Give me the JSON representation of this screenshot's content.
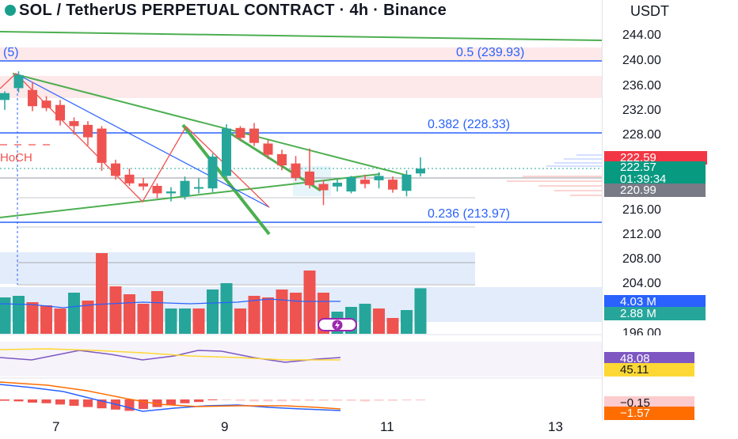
{
  "header": {
    "title": "SOL / TetherUS PERPETUAL CONTRACT · 4h · Binance",
    "currency": "USDT"
  },
  "price_axis": {
    "labels": [
      "244.00",
      "240.00",
      "236.00",
      "232.00",
      "228.00",
      "216.00",
      "212.00",
      "208.00",
      "204.00",
      "196.00"
    ]
  },
  "time_axis": {
    "labels": [
      "7",
      "9",
      "11",
      "13"
    ]
  },
  "fib_levels": [
    {
      "label": "0.5 (239.93)",
      "color": "#2962ff"
    },
    {
      "label": "0.382 (228.33)",
      "color": "#2962ff"
    },
    {
      "label": "0.236 (213.97)",
      "color": "#2962ff"
    }
  ],
  "annotations": {
    "ma_period": "(5)",
    "choch": "HoCH"
  },
  "price_badges": {
    "high": {
      "value": "222.59",
      "bg": "#f23645"
    },
    "last": {
      "value": "222.57",
      "bg": "#089981"
    },
    "countdown": {
      "value": "01:39:34",
      "bg": "#089981"
    },
    "level": {
      "value": "220.99",
      "bg": "#787b86"
    }
  },
  "volume_badges": [
    {
      "value": "4.03 M",
      "bg": "#2962ff"
    },
    {
      "value": "2.88 M",
      "bg": "#26a69a"
    }
  ],
  "rsi_badges": [
    {
      "value": "48.08",
      "bg": "#7e57c2"
    },
    {
      "value": "45.11",
      "bg": "#fdd835"
    }
  ],
  "macd_badges": [
    {
      "value": "−0.15",
      "bg": "#fccbcd"
    },
    {
      "value": "−1.57",
      "bg": "#ff6d00"
    }
  ],
  "colors": {
    "up": "#26a69a",
    "down": "#ef5350",
    "trend": "#4caf50",
    "fib": "#2962ff",
    "zone_red": "#fde8ea",
    "zone_blue": "#e3ecfa"
  },
  "chart_data": {
    "type": "candlestick",
    "title": "SOL / TetherUS PERPETUAL CONTRACT · 4h · Binance",
    "timeframe": "4h",
    "x_ticks": [
      "7",
      "9",
      "11",
      "13"
    ],
    "y_ticks": [
      244,
      240,
      236,
      232,
      228,
      216,
      212,
      208,
      204,
      196
    ],
    "candles": [
      {
        "o": 233.6,
        "h": 235.0,
        "l": 232.0,
        "c": 234.7
      },
      {
        "o": 235.5,
        "h": 238.2,
        "l": 234.8,
        "c": 237.6
      },
      {
        "o": 235.2,
        "h": 236.5,
        "l": 231.8,
        "c": 232.6
      },
      {
        "o": 233.5,
        "h": 234.2,
        "l": 231.8,
        "c": 232.3
      },
      {
        "o": 232.8,
        "h": 233.6,
        "l": 229.5,
        "c": 230.3
      },
      {
        "o": 230.2,
        "h": 230.8,
        "l": 228.0,
        "c": 229.4
      },
      {
        "o": 229.6,
        "h": 230.2,
        "l": 226.3,
        "c": 227.6
      },
      {
        "o": 229.0,
        "h": 229.4,
        "l": 222.2,
        "c": 223.5
      },
      {
        "o": 223.4,
        "h": 224.0,
        "l": 220.8,
        "c": 221.4
      },
      {
        "o": 221.6,
        "h": 222.6,
        "l": 219.8,
        "c": 220.2
      },
      {
        "o": 220.2,
        "h": 221.1,
        "l": 219.1,
        "c": 219.7
      },
      {
        "o": 219.8,
        "h": 220.2,
        "l": 217.8,
        "c": 218.6
      },
      {
        "o": 218.6,
        "h": 219.6,
        "l": 217.3,
        "c": 218.9
      },
      {
        "o": 218.1,
        "h": 221.3,
        "l": 217.6,
        "c": 220.6
      },
      {
        "o": 219.4,
        "h": 221.0,
        "l": 218.6,
        "c": 219.6
      },
      {
        "o": 219.4,
        "h": 225.0,
        "l": 218.8,
        "c": 224.5
      },
      {
        "o": 221.4,
        "h": 229.7,
        "l": 221.0,
        "c": 229.0
      },
      {
        "o": 229.1,
        "h": 229.4,
        "l": 227.0,
        "c": 227.5
      },
      {
        "o": 229.0,
        "h": 229.9,
        "l": 226.2,
        "c": 226.7
      },
      {
        "o": 226.6,
        "h": 227.2,
        "l": 224.1,
        "c": 224.8
      },
      {
        "o": 224.9,
        "h": 225.6,
        "l": 222.3,
        "c": 223.1
      },
      {
        "o": 223.4,
        "h": 224.6,
        "l": 220.6,
        "c": 221.1
      },
      {
        "o": 222.1,
        "h": 225.8,
        "l": 219.4,
        "c": 219.9
      },
      {
        "o": 220.1,
        "h": 220.7,
        "l": 216.7,
        "c": 219.1
      },
      {
        "o": 219.7,
        "h": 220.8,
        "l": 218.9,
        "c": 220.3
      },
      {
        "o": 218.9,
        "h": 221.4,
        "l": 218.6,
        "c": 221.2
      },
      {
        "o": 220.8,
        "h": 221.6,
        "l": 219.4,
        "c": 220.1
      },
      {
        "o": 220.7,
        "h": 222.0,
        "l": 219.4,
        "c": 221.4
      },
      {
        "o": 220.8,
        "h": 221.3,
        "l": 218.7,
        "c": 219.2
      },
      {
        "o": 219.0,
        "h": 222.3,
        "l": 218.1,
        "c": 221.6
      },
      {
        "o": 221.8,
        "h": 224.4,
        "l": 221.3,
        "c": 222.57
      }
    ],
    "volume": [
      {
        "v": 2.3,
        "up": true
      },
      {
        "v": 2.4,
        "up": true
      },
      {
        "v": 2.0,
        "up": false
      },
      {
        "v": 1.8,
        "up": false
      },
      {
        "v": 1.6,
        "up": false
      },
      {
        "v": 2.6,
        "up": true
      },
      {
        "v": 2.1,
        "up": false
      },
      {
        "v": 5.1,
        "up": false
      },
      {
        "v": 3.0,
        "up": false
      },
      {
        "v": 2.5,
        "up": false
      },
      {
        "v": 1.9,
        "up": false
      },
      {
        "v": 2.7,
        "up": false
      },
      {
        "v": 1.6,
        "up": true
      },
      {
        "v": 1.6,
        "up": true
      },
      {
        "v": 1.6,
        "up": false
      },
      {
        "v": 2.8,
        "up": true
      },
      {
        "v": 3.2,
        "up": true
      },
      {
        "v": 1.6,
        "up": false
      },
      {
        "v": 2.4,
        "up": false
      },
      {
        "v": 2.3,
        "up": false
      },
      {
        "v": 2.8,
        "up": false
      },
      {
        "v": 2.6,
        "up": false
      },
      {
        "v": 4.0,
        "up": false
      },
      {
        "v": 2.6,
        "up": false
      },
      {
        "v": 1.4,
        "up": true
      },
      {
        "v": 1.7,
        "up": true
      },
      {
        "v": 1.9,
        "up": true
      },
      {
        "v": 1.6,
        "up": false
      },
      {
        "v": 1.0,
        "up": false
      },
      {
        "v": 1.5,
        "up": true
      },
      {
        "v": 2.88,
        "up": true
      }
    ],
    "levels": {
      "fib_0_5": 239.93,
      "fib_0_382": 228.33,
      "fib_0_236": 213.97,
      "high": 222.59,
      "last": 222.57,
      "support": 220.99
    },
    "volume_ma": 4.03,
    "rsi": 48.08,
    "rsi_ma": 45.11,
    "macd": -0.15,
    "macd_signal": -1.57
  }
}
